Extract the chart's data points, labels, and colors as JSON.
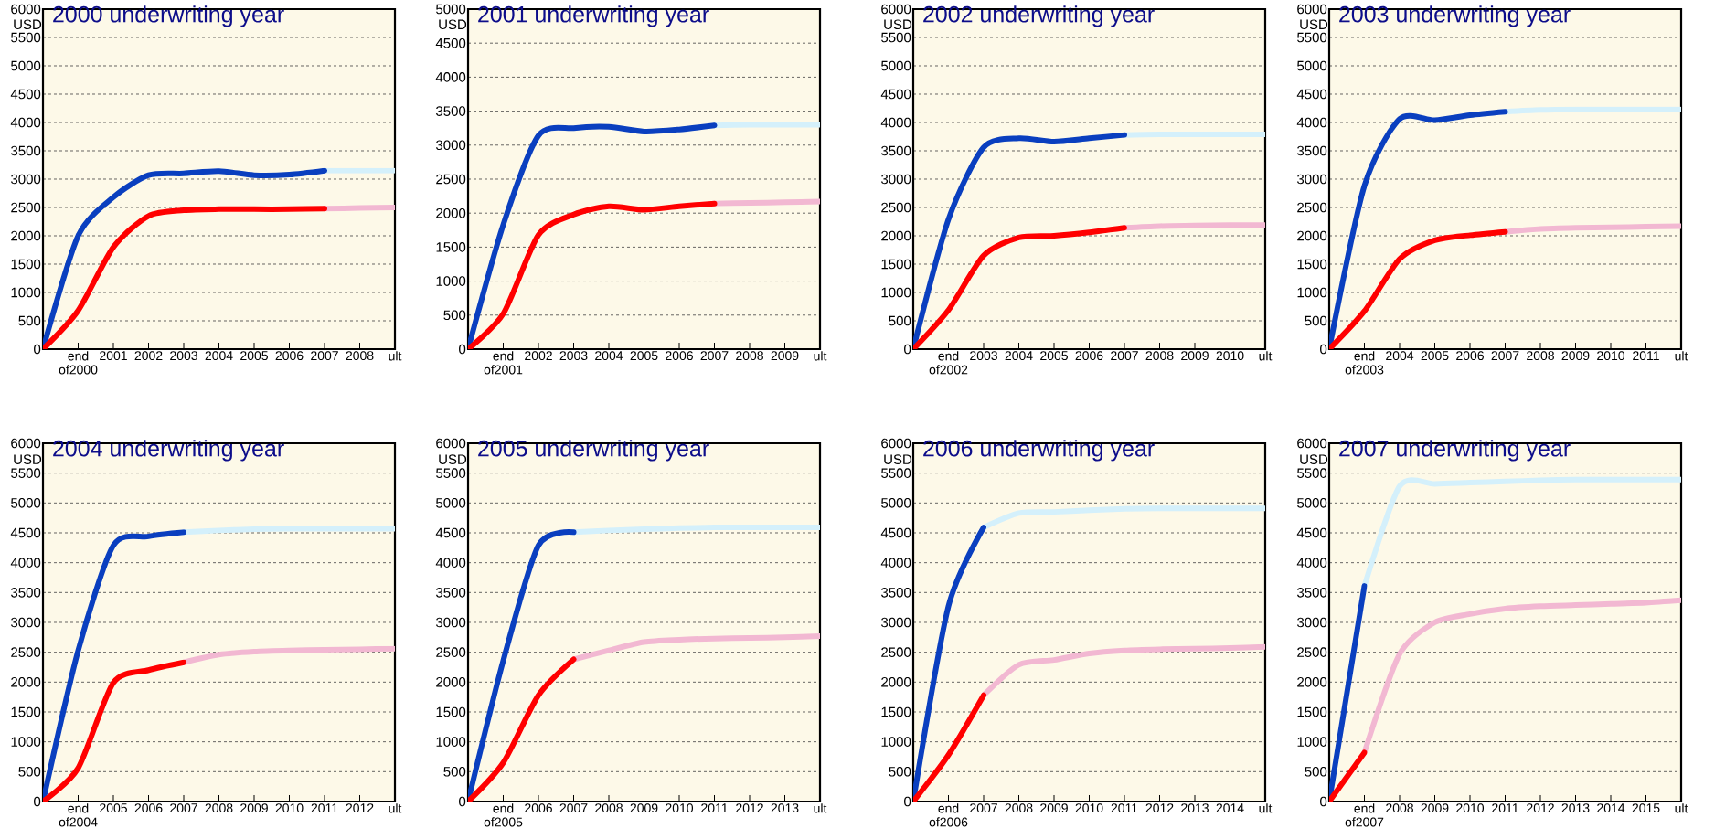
{
  "chart_data": [
    {
      "type": "line",
      "title": "2000 underwriting year",
      "ylabel": "USD",
      "grid": "y",
      "categories": [
        null,
        "end of2000",
        "2001",
        "2002",
        "2003",
        "2004",
        "2005",
        "2006",
        "2007",
        "2008",
        "ult"
      ],
      "ylim": [
        0,
        6000
      ],
      "yticks": [
        0,
        500,
        1000,
        1500,
        2000,
        2500,
        3000,
        3500,
        4000,
        4500,
        5000,
        5500,
        6000
      ],
      "series": [
        {
          "color": "#d4f0fb",
          "values": [
            null,
            null,
            null,
            null,
            null,
            null,
            null,
            null,
            3150,
            3150,
            3150
          ]
        },
        {
          "color": "#f2b8d2",
          "values": [
            null,
            null,
            null,
            null,
            null,
            null,
            null,
            null,
            2480,
            2490,
            2500
          ]
        },
        {
          "color": "#0a3fbf",
          "values": [
            0,
            2000,
            2680,
            3070,
            3100,
            3140,
            3070,
            3080,
            3150,
            null,
            null
          ]
        },
        {
          "color": "#ff0000",
          "values": [
            0,
            680,
            1800,
            2350,
            2450,
            2470,
            2470,
            2470,
            2480,
            null,
            null
          ]
        }
      ]
    },
    {
      "type": "line",
      "title": "2001 underwriting year",
      "ylabel": "USD",
      "grid": "y",
      "categories": [
        null,
        "end of2001",
        "2002",
        "2003",
        "2004",
        "2005",
        "2006",
        "2007",
        "2008",
        "2009",
        "ult"
      ],
      "ylim": [
        0,
        5000
      ],
      "yticks": [
        0,
        500,
        1000,
        1500,
        2000,
        2500,
        3000,
        3500,
        4000,
        4500,
        5000
      ],
      "series": [
        {
          "color": "#d4f0fb",
          "values": [
            null,
            null,
            null,
            null,
            null,
            null,
            null,
            3290,
            3300,
            3300,
            3300
          ]
        },
        {
          "color": "#f2b8d2",
          "values": [
            null,
            null,
            null,
            null,
            null,
            null,
            null,
            2140,
            2150,
            2160,
            2170
          ]
        },
        {
          "color": "#0a3fbf",
          "values": [
            0,
            1830,
            3140,
            3250,
            3270,
            3200,
            3230,
            3290,
            null,
            null,
            null
          ]
        },
        {
          "color": "#ff0000",
          "values": [
            0,
            520,
            1680,
            1980,
            2100,
            2050,
            2100,
            2140,
            null,
            null,
            null
          ]
        }
      ]
    },
    {
      "type": "line",
      "title": "2002  underwriting year",
      "ylabel": "USD",
      "grid": "y",
      "categories": [
        null,
        "end of2002",
        "2003",
        "2004",
        "2005",
        "2006",
        "2007",
        "2008",
        "2009",
        "2010",
        "ult"
      ],
      "ylim": [
        0,
        6000
      ],
      "yticks": [
        0,
        500,
        1000,
        1500,
        2000,
        2500,
        3000,
        3500,
        4000,
        4500,
        5000,
        5500,
        6000
      ],
      "series": [
        {
          "color": "#d4f0fb",
          "values": [
            null,
            null,
            null,
            null,
            null,
            null,
            3780,
            3790,
            3790,
            3790,
            3790
          ]
        },
        {
          "color": "#f2b8d2",
          "values": [
            null,
            null,
            null,
            null,
            null,
            null,
            2140,
            2170,
            2180,
            2190,
            2190
          ]
        },
        {
          "color": "#0a3fbf",
          "values": [
            0,
            2290,
            3560,
            3720,
            3660,
            3720,
            3780,
            null,
            null,
            null,
            null
          ]
        },
        {
          "color": "#ff0000",
          "values": [
            0,
            690,
            1650,
            1970,
            2000,
            2060,
            2140,
            null,
            null,
            null,
            null
          ]
        }
      ]
    },
    {
      "type": "line",
      "title": "2003 underwriting year",
      "ylabel": "USD",
      "grid": "y",
      "categories": [
        null,
        "end of2003",
        "2004",
        "2005",
        "2006",
        "2007",
        "2008",
        "2009",
        "2010",
        "2011",
        "ult"
      ],
      "ylim": [
        0,
        6000
      ],
      "yticks": [
        0,
        500,
        1000,
        1500,
        2000,
        2500,
        3000,
        3500,
        4000,
        4500,
        5000,
        5500,
        6000
      ],
      "series": [
        {
          "color": "#d4f0fb",
          "values": [
            null,
            null,
            null,
            null,
            null,
            4190,
            4220,
            4230,
            4230,
            4230,
            4230
          ]
        },
        {
          "color": "#f2b8d2",
          "values": [
            null,
            null,
            null,
            null,
            null,
            2070,
            2120,
            2140,
            2150,
            2160,
            2170
          ]
        },
        {
          "color": "#0a3fbf",
          "values": [
            0,
            2880,
            4060,
            4040,
            4130,
            4190,
            null,
            null,
            null,
            null,
            null
          ]
        },
        {
          "color": "#ff0000",
          "values": [
            0,
            670,
            1590,
            1920,
            2010,
            2070,
            null,
            null,
            null,
            null,
            null
          ]
        }
      ]
    },
    {
      "type": "line",
      "title": "2004 underwriting year",
      "ylabel": "USD",
      "grid": "y",
      "categories": [
        null,
        "end of2004",
        "2005",
        "2006",
        "2007",
        "2008",
        "2009",
        "2010",
        "2011",
        "2012",
        "ult"
      ],
      "ylim": [
        0,
        6000
      ],
      "yticks": [
        0,
        500,
        1000,
        1500,
        2000,
        2500,
        3000,
        3500,
        4000,
        4500,
        5000,
        5500,
        6000
      ],
      "series": [
        {
          "color": "#d4f0fb",
          "values": [
            null,
            null,
            null,
            null,
            4510,
            4540,
            4560,
            4570,
            4570,
            4570,
            4570
          ]
        },
        {
          "color": "#f2b8d2",
          "values": [
            null,
            null,
            null,
            null,
            2330,
            2460,
            2510,
            2530,
            2540,
            2550,
            2560
          ]
        },
        {
          "color": "#0a3fbf",
          "values": [
            0,
            2530,
            4290,
            4440,
            4510,
            null,
            null,
            null,
            null,
            null,
            null
          ]
        },
        {
          "color": "#ff0000",
          "values": [
            0,
            560,
            1990,
            2200,
            2330,
            null,
            null,
            null,
            null,
            null,
            null
          ]
        }
      ]
    },
    {
      "type": "line",
      "title": "2005 underwriting year",
      "ylabel": "USD",
      "grid": "y",
      "categories": [
        null,
        "end of2005",
        "2006",
        "2007",
        "2008",
        "2009",
        "2010",
        "2011",
        "2012",
        "2013",
        "ult"
      ],
      "ylim": [
        0,
        6000
      ],
      "yticks": [
        0,
        500,
        1000,
        1500,
        2000,
        2500,
        3000,
        3500,
        4000,
        4500,
        5000,
        5500,
        6000
      ],
      "series": [
        {
          "color": "#d4f0fb",
          "values": [
            null,
            null,
            null,
            4510,
            4540,
            4560,
            4580,
            4590,
            4590,
            4590,
            4590
          ]
        },
        {
          "color": "#f2b8d2",
          "values": [
            null,
            null,
            null,
            2380,
            2530,
            2670,
            2710,
            2730,
            2740,
            2750,
            2770
          ]
        },
        {
          "color": "#0a3fbf",
          "values": [
            0,
            2360,
            4290,
            4510,
            null,
            null,
            null,
            null,
            null,
            null,
            null
          ]
        },
        {
          "color": "#ff0000",
          "values": [
            0,
            650,
            1780,
            2380,
            null,
            null,
            null,
            null,
            null,
            null,
            null
          ]
        }
      ]
    },
    {
      "type": "line",
      "title": "2006 underwriting year",
      "ylabel": "USD",
      "grid": "y",
      "categories": [
        null,
        "end of2006",
        "2007",
        "2008",
        "2009",
        "2010",
        "2011",
        "2012",
        "2013",
        "2014",
        "ult"
      ],
      "ylim": [
        0,
        6000
      ],
      "yticks": [
        0,
        500,
        1000,
        1500,
        2000,
        2500,
        3000,
        3500,
        4000,
        4500,
        5000,
        5500,
        6000
      ],
      "series": [
        {
          "color": "#d4f0fb",
          "values": [
            null,
            null,
            4590,
            4830,
            4850,
            4880,
            4900,
            4910,
            4910,
            4910,
            4910
          ]
        },
        {
          "color": "#f2b8d2",
          "values": [
            null,
            null,
            1780,
            2290,
            2370,
            2480,
            2530,
            2550,
            2560,
            2570,
            2590
          ]
        },
        {
          "color": "#0a3fbf",
          "values": [
            0,
            3270,
            4590,
            null,
            null,
            null,
            null,
            null,
            null,
            null,
            null
          ]
        },
        {
          "color": "#ff0000",
          "values": [
            0,
            780,
            1780,
            null,
            null,
            null,
            null,
            null,
            null,
            null,
            null
          ]
        }
      ]
    },
    {
      "type": "line",
      "title": "2007 underwriting year",
      "ylabel": "USD",
      "grid": "y",
      "categories": [
        null,
        "end of2007",
        "2008",
        "2009",
        "2010",
        "2011",
        "2012",
        "2013",
        "2014",
        "2015",
        "ult"
      ],
      "ylim": [
        0,
        6000
      ],
      "yticks": [
        0,
        500,
        1000,
        1500,
        2000,
        2500,
        3000,
        3500,
        4000,
        4500,
        5000,
        5500,
        6000
      ],
      "series": [
        {
          "color": "#d4f0fb",
          "values": [
            null,
            3610,
            5280,
            5320,
            5340,
            5360,
            5380,
            5390,
            5390,
            5390,
            5390
          ]
        },
        {
          "color": "#f2b8d2",
          "values": [
            null,
            820,
            2470,
            3000,
            3140,
            3230,
            3270,
            3290,
            3310,
            3330,
            3370
          ]
        },
        {
          "color": "#0a3fbf",
          "values": [
            0,
            3610,
            null,
            null,
            null,
            null,
            null,
            null,
            null,
            null,
            null
          ]
        },
        {
          "color": "#ff0000",
          "values": [
            0,
            820,
            null,
            null,
            null,
            null,
            null,
            null,
            null,
            null,
            null
          ]
        }
      ]
    }
  ]
}
